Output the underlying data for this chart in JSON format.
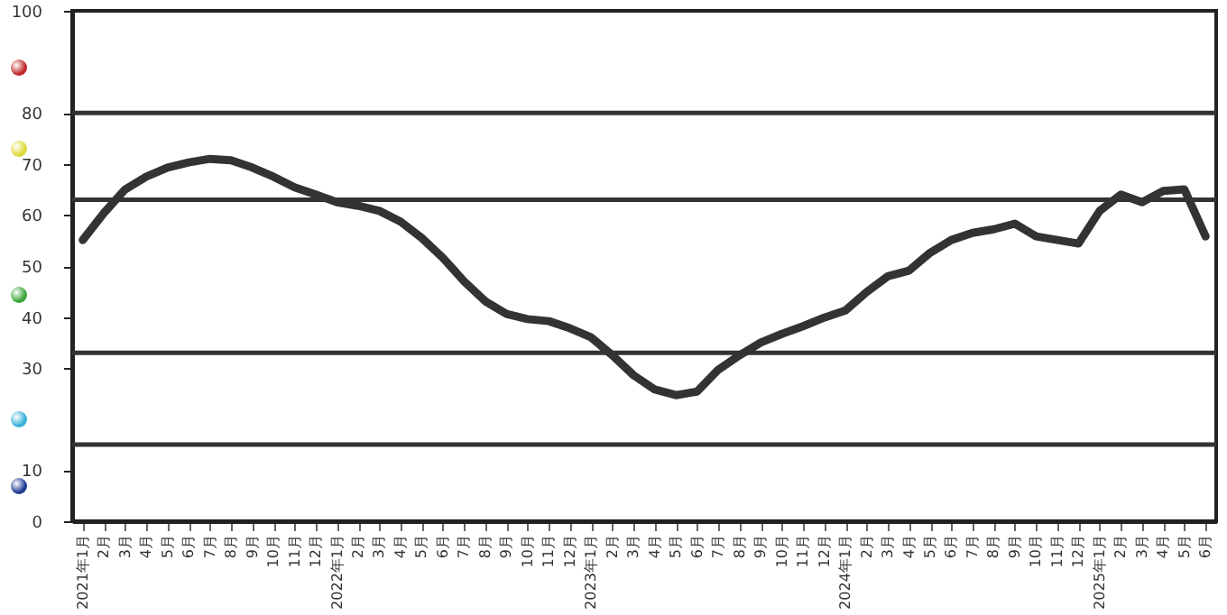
{
  "chart_data": {
    "type": "line",
    "categories": [
      "2021年1月",
      "2月",
      "3月",
      "4月",
      "5月",
      "6月",
      "7月",
      "8月",
      "9月",
      "10月",
      "11月",
      "12月",
      "2022年1月",
      "2月",
      "3月",
      "4月",
      "5月",
      "6月",
      "7月",
      "8月",
      "9月",
      "10月",
      "11月",
      "12月",
      "2023年1月",
      "2月",
      "3月",
      "4月",
      "5月",
      "6月",
      "7月",
      "8月",
      "9月",
      "10月",
      "11月",
      "12月",
      "2024年1月",
      "2月",
      "3月",
      "4月",
      "5月",
      "6月",
      "7月",
      "8月",
      "9月",
      "10月",
      "11月",
      "12月",
      "2025年1月",
      "2月",
      "3月",
      "4月",
      "5月",
      "6月"
    ],
    "series": [
      {
        "color": "#333333",
        "values": [
          55.1,
          60.4,
          65,
          67.5,
          69.3,
          70.3,
          71,
          70.7,
          69.3,
          67.5,
          65.4,
          64,
          62.5,
          61.8,
          60.8,
          58.7,
          55.5,
          51.6,
          47,
          43.1,
          40.6,
          39.6,
          39.2,
          37.8,
          36,
          32.5,
          28.6,
          25.8,
          24.7,
          25.4,
          29.7,
          32.5,
          35,
          36.7,
          38.2,
          39.9,
          41.3,
          44.9,
          48,
          49.1,
          52.6,
          55.1,
          56.5,
          57.2,
          58.3,
          55.8,
          55.1,
          54.4,
          60.8,
          64,
          62.5,
          64.7,
          65,
          55.8
        ]
      }
    ],
    "ylim": [
      0,
      100
    ],
    "yticks": [
      0,
      10,
      30,
      40,
      50,
      60,
      70,
      80,
      100
    ],
    "ref_lines": [
      {
        "axis": "y",
        "value": 80,
        "color": "#333333"
      },
      {
        "axis": "y",
        "value": 63,
        "color": "#333333"
      },
      {
        "axis": "y",
        "value": 33,
        "color": "#333333"
      },
      {
        "axis": "y",
        "value": 15,
        "color": "#333333"
      }
    ]
  }
}
